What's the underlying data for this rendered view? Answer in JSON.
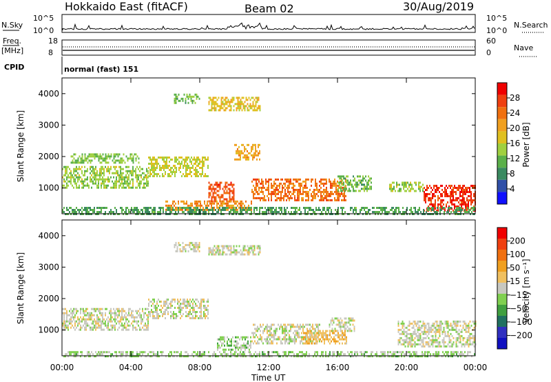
{
  "header": {
    "radar": "Hokkaido East (fitACF)",
    "beam": "Beam 02",
    "date": "30/Aug/2019"
  },
  "panels": {
    "nsky": {
      "label": "N.Sky",
      "ticks_left": [
        "10^5",
        "10^0"
      ],
      "label_right": "N.Search",
      "ticks_right": [
        "10^5",
        "10^0"
      ]
    },
    "freq": {
      "label_line1": "Freq.",
      "label_line2": "[MHz]",
      "ticks_left": [
        "18",
        "8"
      ],
      "label_right": "Nave",
      "ticks_right": [
        "60",
        "0"
      ]
    },
    "cpid": {
      "label": "CPID",
      "text": "normal (fast) 151"
    }
  },
  "colors": {
    "power": [
      "#1010ff",
      "#3050a8",
      "#3a8a60",
      "#5bb04a",
      "#a0d040",
      "#e0c020",
      "#f0a020",
      "#f07010",
      "#f04010",
      "#f00000"
    ],
    "velocity": [
      "#1010c0",
      "#3030c0",
      "#207060",
      "#40a040",
      "#80d050",
      "#c8c8c0",
      "#f0c060",
      "#f0a020",
      "#f07010",
      "#f04010",
      "#f00000"
    ]
  },
  "chart_data": [
    {
      "type": "heatmap",
      "name": "power",
      "xlabel": "",
      "ylabel": "Slant Range [km]",
      "ylim": [
        180,
        4500
      ],
      "yticks": [
        "1000",
        "2000",
        "3000",
        "4000"
      ],
      "xlim": [
        "00:00",
        "24:00"
      ],
      "colorbar": {
        "label": "Power [dB]",
        "range": [
          0,
          32
        ],
        "ticks": [
          "4",
          "8",
          "12",
          "16",
          "20",
          "24",
          "28"
        ]
      },
      "regions": [
        {
          "t0": 0.0,
          "t1": 5.0,
          "r0": 1000,
          "r1": 1700,
          "value": 14
        },
        {
          "t0": 0.5,
          "t1": 4.5,
          "r0": 1800,
          "r1": 2100,
          "value": 13
        },
        {
          "t0": 5.0,
          "t1": 8.5,
          "r0": 1400,
          "r1": 2000,
          "value": 16
        },
        {
          "t0": 8.5,
          "t1": 10.0,
          "r0": 600,
          "r1": 1200,
          "value": 26
        },
        {
          "t0": 10.0,
          "t1": 11.5,
          "r0": 1900,
          "r1": 2400,
          "value": 20
        },
        {
          "t0": 6.5,
          "t1": 8.0,
          "r0": 3700,
          "r1": 4000,
          "value": 12
        },
        {
          "t0": 8.5,
          "t1": 11.5,
          "r0": 3500,
          "r1": 3900,
          "value": 18
        },
        {
          "t0": 11.0,
          "t1": 16.5,
          "r0": 600,
          "r1": 1300,
          "value": 24
        },
        {
          "t0": 16.0,
          "t1": 18.0,
          "r0": 900,
          "r1": 1400,
          "value": 12
        },
        {
          "t0": 19.0,
          "t1": 21.0,
          "r0": 900,
          "r1": 1200,
          "value": 14
        },
        {
          "t0": 21.0,
          "t1": 24.0,
          "r0": 250,
          "r1": 1100,
          "value": 28
        },
        {
          "t0": 6.0,
          "t1": 11.0,
          "r0": 300,
          "r1": 600,
          "value": 22
        },
        {
          "t0": 0.0,
          "t1": 24.0,
          "r0": 190,
          "r1": 400,
          "value": 10
        }
      ]
    },
    {
      "type": "heatmap",
      "name": "velocity",
      "xlabel": "Time UT",
      "ylabel": "Slant Range [km]",
      "ylim": [
        180,
        4500
      ],
      "yticks": [
        "1000",
        "2000",
        "3000",
        "4000"
      ],
      "xlim": [
        "00:00",
        "24:00"
      ],
      "xticks": [
        "00:00",
        "04:00",
        "08:00",
        "12:00",
        "16:00",
        "20:00",
        "00:00"
      ],
      "colorbar": {
        "label": "Velocity [m s⁻¹]",
        "range": [
          -250,
          250
        ],
        "ticks": [
          "200",
          "100",
          "50",
          "15",
          "−15",
          "−50",
          "−100",
          "−200"
        ]
      },
      "regions": [
        {
          "t0": 0.0,
          "t1": 5.0,
          "r0": 1000,
          "r1": 1700,
          "value": 0
        },
        {
          "t0": 5.0,
          "t1": 8.5,
          "r0": 1400,
          "r1": 2000,
          "value": 0
        },
        {
          "t0": 6.5,
          "t1": 8.0,
          "r0": 3500,
          "r1": 3800,
          "value": 5
        },
        {
          "t0": 8.5,
          "t1": 11.5,
          "r0": 3400,
          "r1": 3700,
          "value": 0
        },
        {
          "t0": 11.0,
          "t1": 15.0,
          "r0": 600,
          "r1": 1200,
          "value": 0
        },
        {
          "t0": 14.0,
          "t1": 16.5,
          "r0": 600,
          "r1": 1000,
          "value": 60
        },
        {
          "t0": 15.5,
          "t1": 17.0,
          "r0": 1000,
          "r1": 1400,
          "value": 0
        },
        {
          "t0": 19.5,
          "t1": 24.0,
          "r0": 500,
          "r1": 1300,
          "value": 0
        },
        {
          "t0": 9.0,
          "t1": 11.0,
          "r0": 400,
          "r1": 800,
          "value": -40
        },
        {
          "t0": 0.0,
          "t1": 24.0,
          "r0": 190,
          "r1": 330,
          "value": -30
        }
      ]
    }
  ]
}
